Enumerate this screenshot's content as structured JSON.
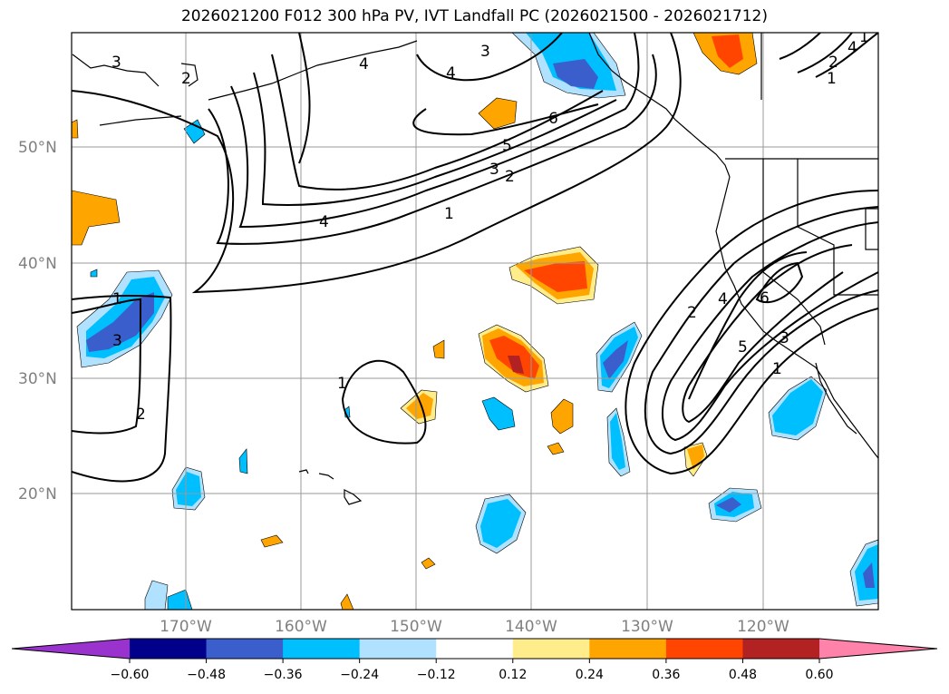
{
  "title": "2026021200 F012 300 hPa PV, IVT Landfall PC (2026021500 - 2026021712)",
  "map": {
    "lat_ticks": [
      "50°N",
      "40°N",
      "30°N",
      "20°N"
    ],
    "lon_ticks": [
      "170°W",
      "160°W",
      "150°W",
      "140°W",
      "130°W",
      "120°W"
    ],
    "grid": true,
    "contour_labels": [
      "3",
      "2",
      "4",
      "3",
      "4",
      "6",
      "5",
      "3",
      "2",
      "1",
      "4",
      "1",
      "3",
      "2",
      "1",
      "2",
      "4",
      "6",
      "5",
      "3",
      "1",
      "1",
      "4",
      "2",
      "1"
    ]
  },
  "colorbar": {
    "ticks": [
      "−0.60",
      "−0.48",
      "−0.36",
      "−0.24",
      "−0.12",
      "0.12",
      "0.24",
      "0.36",
      "0.48",
      "0.60"
    ],
    "colors": [
      "#9a32cd",
      "#00008b",
      "#3a5fcd",
      "#00bfff",
      "#b0e2ff",
      "#ffffff",
      "#ffec8b",
      "#ffa500",
      "#ff4500",
      "#b22222",
      "#ff82ab"
    ]
  }
}
